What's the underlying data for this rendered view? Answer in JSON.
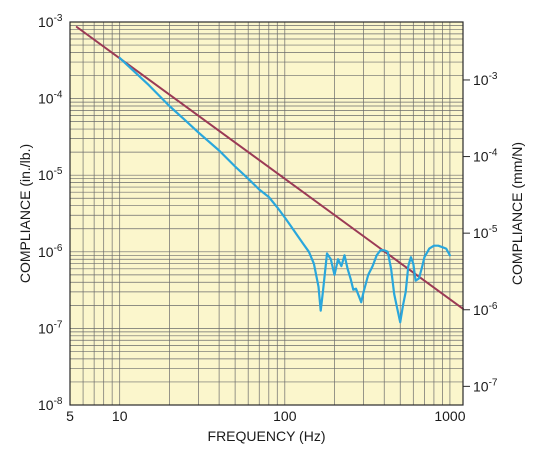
{
  "chart_data": {
    "type": "line",
    "title": "",
    "xlabel": "FREQUENCY (Hz)",
    "ylabel": "COMPLIANCE (in./lb.)",
    "y2label": "COMPLIANCE (mm/N)",
    "x_scale": "log",
    "y_scale": "log",
    "xlim": [
      5,
      1200
    ],
    "ylim": [
      1e-08,
      0.001
    ],
    "y2lim": [
      5.71e-08,
      0.00571
    ],
    "x_ticks": [
      {
        "value": 5,
        "label": "5"
      },
      {
        "value": 10,
        "label": "10"
      },
      {
        "value": 100,
        "label": "100"
      },
      {
        "value": 1000,
        "label": "1000"
      }
    ],
    "y_ticks": [
      {
        "value": 1e-08,
        "base": "10",
        "exp": "-8"
      },
      {
        "value": 1e-07,
        "base": "10",
        "exp": "-7"
      },
      {
        "value": 1e-06,
        "base": "10",
        "exp": "-6"
      },
      {
        "value": 1e-05,
        "base": "10",
        "exp": "-5"
      },
      {
        "value": 0.0001,
        "base": "10",
        "exp": "-4"
      },
      {
        "value": 0.001,
        "base": "10",
        "exp": "-3"
      }
    ],
    "y2_ticks": [
      {
        "value": 1e-07,
        "base": "10",
        "exp": "-7"
      },
      {
        "value": 1e-06,
        "base": "10",
        "exp": "-6"
      },
      {
        "value": 1e-05,
        "base": "10",
        "exp": "-5"
      },
      {
        "value": 0.0001,
        "base": "10",
        "exp": "-4"
      },
      {
        "value": 0.001,
        "base": "10",
        "exp": "-3"
      }
    ],
    "grid": true,
    "legend": "none",
    "colors": {
      "plot_background": "#fbf6cc",
      "grid": "#6b6b6b",
      "theory_line": "#9b3a55",
      "measured_line": "#2aa7dc"
    },
    "series": [
      {
        "x": [
          5.5,
          1200
        ],
        "y": [
          0.00086,
          1.8e-07
        ]
      },
      {
        "x": [
          10,
          12,
          15,
          20,
          25,
          30,
          40,
          50,
          60,
          70,
          80,
          90,
          100,
          110,
          120,
          130,
          140,
          150,
          160,
          165,
          170,
          180,
          190,
          200,
          210,
          220,
          230,
          240,
          250,
          260,
          270,
          290,
          300,
          320,
          340,
          360,
          380,
          400,
          420,
          440,
          460,
          480,
          500,
          520,
          540,
          560,
          580,
          600,
          620,
          650,
          680,
          700,
          750,
          800,
          850,
          900,
          950,
          1000
        ],
        "y": [
          0.00034,
          0.000235,
          0.00015,
          8e-05,
          5.2e-05,
          3.6e-05,
          2.1e-05,
          1.3e-05,
          9e-06,
          6.5e-06,
          5.2e-06,
          3.8e-06,
          2.8e-06,
          2.1e-06,
          1.6e-06,
          1.25e-06,
          1e-06,
          7e-07,
          3.5e-07,
          1.7e-07,
          3e-07,
          9.5e-07,
          8e-07,
          5e-07,
          8e-07,
          6.5e-07,
          9e-07,
          6e-07,
          4.5e-07,
          3.2e-07,
          3.3e-07,
          2.2e-07,
          3e-07,
          5e-07,
          6.5e-07,
          9e-07,
          1.05e-06,
          1.05e-06,
          1e-06,
          6e-07,
          2.8e-07,
          1.8e-07,
          1.2e-07,
          2e-07,
          3e-07,
          6.5e-07,
          8.5e-07,
          7e-07,
          4.2e-07,
          4.5e-07,
          6.5e-07,
          8.5e-07,
          1.1e-06,
          1.2e-06,
          1.2e-06,
          1.15e-06,
          1.1e-06,
          9e-07
        ]
      }
    ]
  }
}
